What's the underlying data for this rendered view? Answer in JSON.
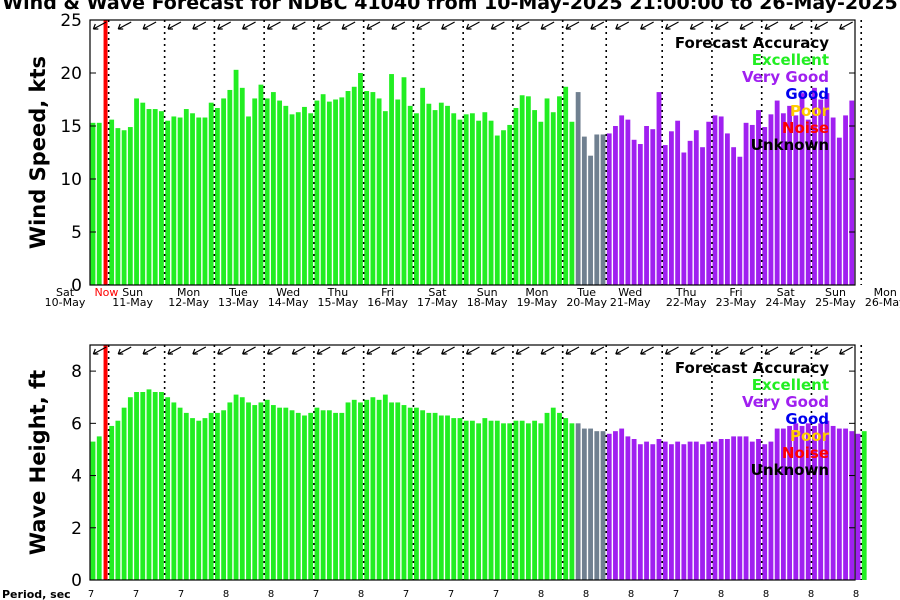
{
  "title": "Wind & Wave Forecast for NDBC 41040 from 10-May-2025 21:00:00 to 26-May-2025",
  "day_labels": [
    {
      "day": "Sat",
      "date": "10-May"
    },
    {
      "day": "Sun",
      "date": "11-May"
    },
    {
      "day": "Mon",
      "date": "12-May"
    },
    {
      "day": "Tue",
      "date": "13-May"
    },
    {
      "day": "Wed",
      "date": "14-May"
    },
    {
      "day": "Thu",
      "date": "15-May"
    },
    {
      "day": "Fri",
      "date": "16-May"
    },
    {
      "day": "Sat",
      "date": "17-May"
    },
    {
      "day": "Sun",
      "date": "18-May"
    },
    {
      "day": "Mon",
      "date": "19-May"
    },
    {
      "day": "Tue",
      "date": "20-May"
    },
    {
      "day": "Wed",
      "date": "21-May"
    },
    {
      "day": "Thu",
      "date": "22-May"
    },
    {
      "day": "Fri",
      "date": "23-May"
    },
    {
      "day": "Sat",
      "date": "24-May"
    },
    {
      "day": "Sun",
      "date": "25-May"
    },
    {
      "day": "Mon",
      "date": "26-May"
    }
  ],
  "now_label": "Now",
  "period_label": "Period, sec",
  "legend": {
    "title": "Forecast Accuracy",
    "items": [
      {
        "label": "Excellent",
        "color": "#22ee22"
      },
      {
        "label": "Very Good",
        "color": "#a020f0"
      },
      {
        "label": "Good",
        "color": "#0000ee"
      },
      {
        "label": "Poor",
        "color": "#ffcc00"
      },
      {
        "label": "Noise",
        "color": "#ff0000"
      },
      {
        "label": "Unknown",
        "color": "#000000"
      }
    ]
  },
  "colors": {
    "excellent": "#22ee22",
    "very_good": "#a020f0",
    "unknown": "#708090",
    "now_line": "#ff0000"
  },
  "chart_data": [
    {
      "type": "bar",
      "ylabel": "Wind Speed, kts",
      "ylim": [
        0,
        25
      ],
      "yticks": [
        0,
        5,
        10,
        15,
        20,
        25
      ],
      "values": [
        15.3,
        15.3,
        0,
        15.6,
        14.8,
        14.6,
        14.9,
        17.6,
        17.2,
        16.6,
        16.6,
        16.4,
        15.5,
        15.9,
        15.8,
        16.6,
        16.2,
        15.8,
        15.8,
        17.2,
        16.7,
        17.6,
        18.4,
        20.3,
        18.6,
        15.9,
        17.6,
        18.9,
        17.6,
        18.2,
        17.4,
        16.9,
        16.1,
        16.3,
        16.8,
        16.2,
        17.4,
        18.0,
        17.3,
        17.5,
        17.7,
        18.3,
        18.7,
        20.0,
        18.3,
        18.2,
        17.6,
        16.4,
        19.9,
        17.5,
        19.6,
        16.9,
        16.2,
        18.6,
        17.1,
        16.5,
        17.2,
        16.9,
        16.2,
        15.6,
        16.1,
        16.2,
        15.5,
        16.3,
        15.5,
        14.1,
        14.6,
        15.1,
        16.7,
        17.9,
        17.8,
        16.5,
        15.4,
        17.6,
        16.3,
        17.8,
        18.7,
        15.4,
        18.2,
        14.0,
        12.2,
        14.2,
        14.2,
        14.3,
        15.0,
        16.0,
        15.6,
        13.7,
        13.3,
        15.0,
        14.7,
        18.2,
        13.2,
        14.5,
        15.5,
        12.5,
        13.6,
        14.6,
        13.0,
        15.4,
        16.0,
        15.9,
        14.3,
        13.0,
        12.1,
        15.3,
        15.1,
        16.5,
        14.9,
        16.1,
        17.4,
        16.2,
        16.9,
        16.0,
        18.1,
        15.6,
        18.6,
        17.5,
        18.1,
        15.8,
        13.9,
        16.0,
        17.4
      ],
      "accuracy": [
        "E",
        "E",
        "N",
        "E",
        "E",
        "E",
        "E",
        "E",
        "E",
        "E",
        "E",
        "E",
        "E",
        "E",
        "E",
        "E",
        "E",
        "E",
        "E",
        "E",
        "E",
        "E",
        "E",
        "E",
        "E",
        "E",
        "E",
        "E",
        "E",
        "E",
        "E",
        "E",
        "E",
        "E",
        "E",
        "E",
        "E",
        "E",
        "E",
        "E",
        "E",
        "E",
        "E",
        "E",
        "E",
        "E",
        "E",
        "E",
        "E",
        "E",
        "E",
        "E",
        "E",
        "E",
        "E",
        "E",
        "E",
        "E",
        "E",
        "E",
        "E",
        "E",
        "E",
        "E",
        "E",
        "E",
        "E",
        "E",
        "E",
        "E",
        "E",
        "E",
        "E",
        "E",
        "E",
        "E",
        "E",
        "E",
        "U",
        "U",
        "U",
        "U",
        "U",
        "V",
        "V",
        "V",
        "V",
        "V",
        "V",
        "V",
        "V",
        "V",
        "V",
        "V",
        "V",
        "V",
        "V",
        "V",
        "V",
        "V",
        "V",
        "V",
        "V",
        "V",
        "V",
        "V",
        "V",
        "V",
        "V",
        "V",
        "V",
        "V",
        "V",
        "V",
        "V",
        "V",
        "V",
        "V",
        "V",
        "V",
        "V",
        "V",
        "V",
        "V"
      ]
    },
    {
      "type": "bar",
      "ylabel": "Wave Height, ft",
      "ylim": [
        0,
        9
      ],
      "yticks": [
        0,
        2,
        4,
        6,
        8
      ],
      "values": [
        5.3,
        5.5,
        0,
        5.9,
        6.1,
        6.6,
        7.0,
        7.2,
        7.2,
        7.3,
        7.2,
        7.2,
        7.0,
        6.8,
        6.6,
        6.4,
        6.2,
        6.1,
        6.2,
        6.4,
        6.4,
        6.5,
        6.8,
        7.1,
        7.0,
        6.8,
        6.7,
        6.8,
        6.9,
        6.7,
        6.6,
        6.6,
        6.5,
        6.4,
        6.3,
        6.4,
        6.6,
        6.5,
        6.5,
        6.4,
        6.4,
        6.8,
        6.9,
        6.8,
        6.9,
        7.0,
        6.9,
        7.1,
        6.8,
        6.8,
        6.7,
        6.6,
        6.6,
        6.5,
        6.4,
        6.4,
        6.3,
        6.3,
        6.2,
        6.2,
        6.1,
        6.1,
        6.0,
        6.2,
        6.1,
        6.1,
        6.0,
        6.0,
        6.1,
        6.1,
        6.0,
        6.1,
        6.0,
        6.4,
        6.6,
        6.4,
        6.2,
        6.0,
        6.0,
        5.8,
        5.8,
        5.7,
        5.7,
        5.6,
        5.7,
        5.8,
        5.5,
        5.4,
        5.2,
        5.3,
        5.2,
        5.4,
        5.3,
        5.2,
        5.3,
        5.2,
        5.3,
        5.3,
        5.2,
        5.3,
        5.3,
        5.4,
        5.4,
        5.5,
        5.5,
        5.5,
        5.3,
        5.4,
        5.2,
        5.3,
        5.8,
        5.8,
        5.9,
        6.0,
        5.9,
        6.0,
        5.9,
        6.0,
        6.1,
        5.9,
        5.8,
        5.8,
        5.7,
        5.6,
        5.7
      ],
      "accuracy": [
        "E",
        "E",
        "N",
        "E",
        "E",
        "E",
        "E",
        "E",
        "E",
        "E",
        "E",
        "E",
        "E",
        "E",
        "E",
        "E",
        "E",
        "E",
        "E",
        "E",
        "E",
        "E",
        "E",
        "E",
        "E",
        "E",
        "E",
        "E",
        "E",
        "E",
        "E",
        "E",
        "E",
        "E",
        "E",
        "E",
        "E",
        "E",
        "E",
        "E",
        "E",
        "E",
        "E",
        "E",
        "E",
        "E",
        "E",
        "E",
        "E",
        "E",
        "E",
        "E",
        "E",
        "E",
        "E",
        "E",
        "E",
        "E",
        "E",
        "E",
        "E",
        "E",
        "E",
        "E",
        "E",
        "E",
        "E",
        "E",
        "E",
        "E",
        "E",
        "E",
        "E",
        "E",
        "E",
        "E",
        "E",
        "E",
        "U",
        "U",
        "U",
        "U",
        "U",
        "V",
        "V",
        "V",
        "V",
        "V",
        "V",
        "V",
        "V",
        "V",
        "V",
        "V",
        "V",
        "V",
        "V",
        "V",
        "V",
        "V",
        "V",
        "V",
        "V",
        "V",
        "V",
        "V",
        "V",
        "V",
        "V",
        "V",
        "V",
        "V",
        "V",
        "V",
        "V",
        "V",
        "V",
        "V",
        "V",
        "V",
        "V",
        "V",
        "V",
        "V"
      ]
    }
  ],
  "periods": [
    "7",
    "7",
    "7",
    "8",
    "8",
    "7",
    "8",
    "7",
    "7",
    "7",
    "8",
    "8",
    "8",
    "7",
    "8",
    "8",
    "8",
    "8"
  ]
}
